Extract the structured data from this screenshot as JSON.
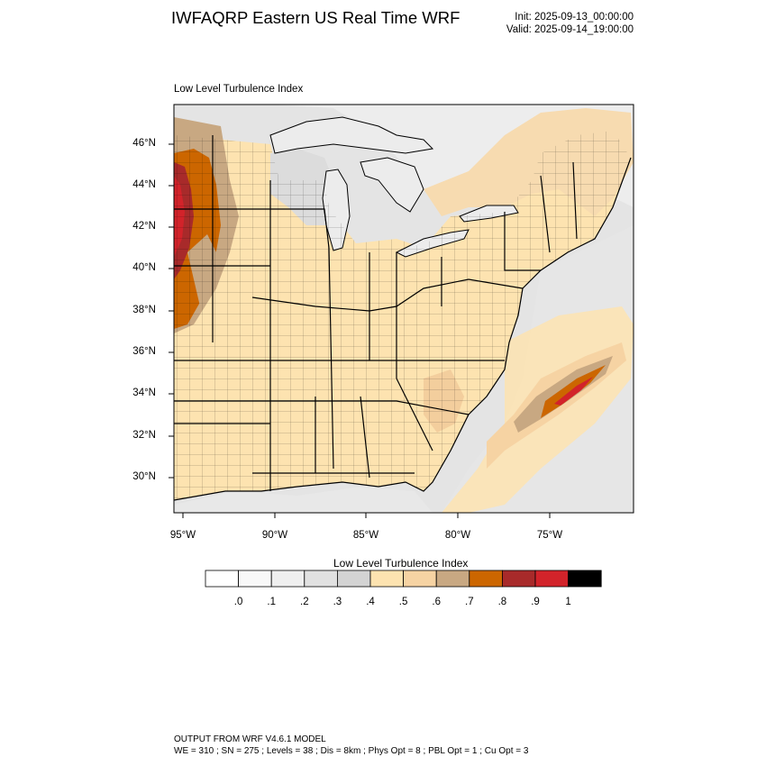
{
  "header": {
    "title": "IWFAQRP Eastern US Real Time WRF",
    "init": "Init: 2025-09-13_00:00:00",
    "valid": "Valid: 2025-09-14_19:00:00"
  },
  "panel": {
    "title": "Low Level Turbulence Index"
  },
  "map": {
    "lat_labels": [
      "46°N",
      "44°N",
      "42°N",
      "40°N",
      "38°N",
      "36°N",
      "34°N",
      "32°N",
      "30°N"
    ],
    "lon_labels": [
      "95°W",
      "90°W",
      "85°W",
      "80°W",
      "75°W"
    ],
    "colors": {
      "land_low": "#fde3b0",
      "water": "#ececec",
      "gray_mid": "#dcdcdc",
      "tan": "#c8a882",
      "orange": "#cc6600",
      "dark_red": "#a82a2a",
      "red": "#d2232a",
      "black": "#000000"
    }
  },
  "colorbar": {
    "title": "Low Level Turbulence Index",
    "ticks": [
      ".0",
      ".1",
      ".2",
      ".3",
      ".4",
      ".5",
      ".6",
      ".7",
      ".8",
      ".9",
      "1"
    ],
    "colors": [
      "#ffffff",
      "#f8f8f8",
      "#efefef",
      "#e1e1e1",
      "#d3d3d3",
      "#fde3b0",
      "#f6d3a3",
      "#c8a882",
      "#cc6600",
      "#a82a2a",
      "#d2232a",
      "#000000"
    ]
  },
  "footer": {
    "line1": "OUTPUT FROM WRF V4.6.1 MODEL",
    "line2": "WE = 310 ; SN = 275 ; Levels = 38 ; Dis = 8km ; Phys Opt = 8 ; PBL Opt = 1 ; Cu Opt = 3"
  }
}
